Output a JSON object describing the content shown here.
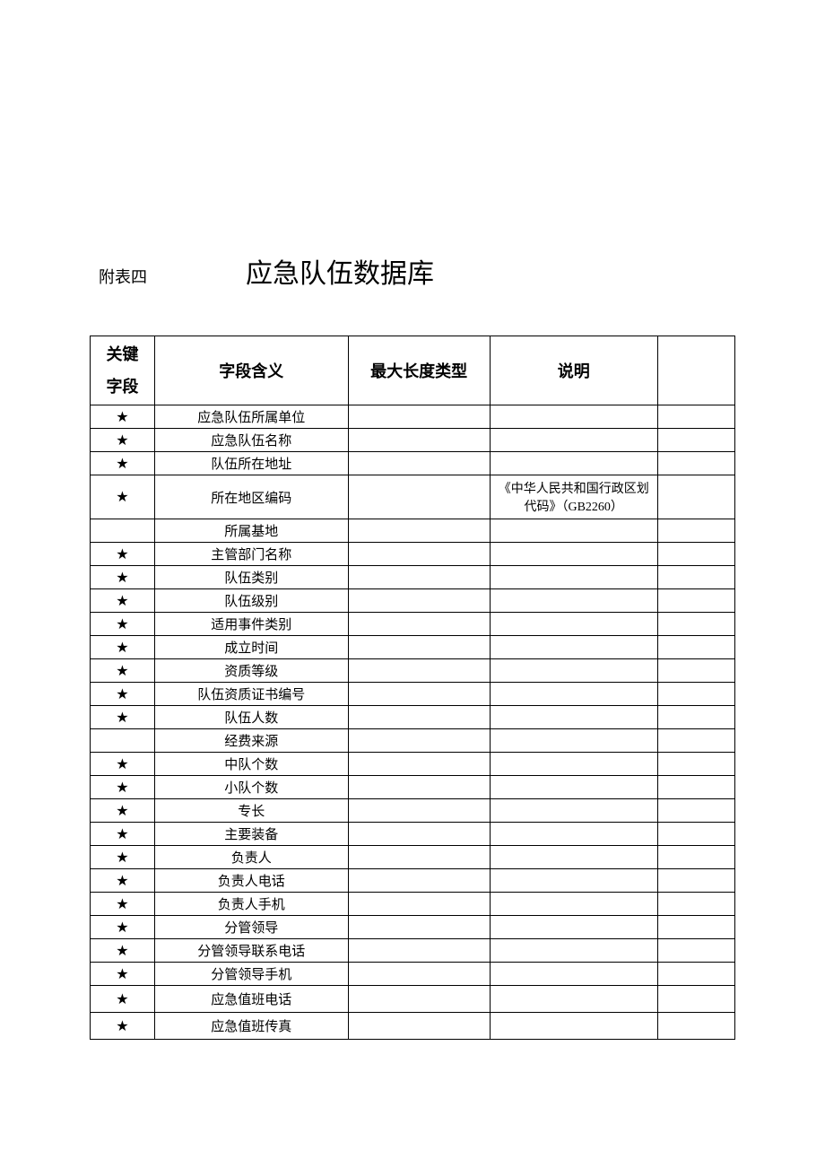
{
  "document": {
    "attachment_label": "附表四",
    "title": "应急队伍数据库",
    "star_char": "★",
    "table": {
      "columns": [
        "关键字段",
        "字段含义",
        "最大长度类型",
        "说明",
        ""
      ],
      "col_key_l1": "关键",
      "col_key_l2": "字段",
      "col_meaning": "字段含义",
      "col_maxlen": "最大长度类型",
      "col_desc": "说明",
      "rows": [
        {
          "key": true,
          "meaning": "应急队伍所属单位",
          "maxlen": "",
          "desc": "",
          "tall": false
        },
        {
          "key": true,
          "meaning": "应急队伍名称",
          "maxlen": "",
          "desc": "",
          "tall": false
        },
        {
          "key": true,
          "meaning": "队伍所在地址",
          "maxlen": "",
          "desc": "",
          "tall": false
        },
        {
          "key": true,
          "meaning": "所在地区编码",
          "maxlen": "",
          "desc": "《中华人民共和国行政区划代码》（GB2260）",
          "tall": false,
          "multiline": true
        },
        {
          "key": false,
          "meaning": "所属基地",
          "maxlen": "",
          "desc": "",
          "tall": false
        },
        {
          "key": true,
          "meaning": "主管部门名称",
          "maxlen": "",
          "desc": "",
          "tall": false
        },
        {
          "key": true,
          "meaning": "队伍类别",
          "maxlen": "",
          "desc": "",
          "tall": false
        },
        {
          "key": true,
          "meaning": "队伍级别",
          "maxlen": "",
          "desc": "",
          "tall": false
        },
        {
          "key": true,
          "meaning": "适用事件类别",
          "maxlen": "",
          "desc": "",
          "tall": false
        },
        {
          "key": true,
          "meaning": "成立时间",
          "maxlen": "",
          "desc": "",
          "tall": false
        },
        {
          "key": true,
          "meaning": "资质等级",
          "maxlen": "",
          "desc": "",
          "tall": false
        },
        {
          "key": true,
          "meaning": "队伍资质证书编号",
          "maxlen": "",
          "desc": "",
          "tall": false
        },
        {
          "key": true,
          "meaning": "队伍人数",
          "maxlen": "",
          "desc": "",
          "tall": false
        },
        {
          "key": false,
          "meaning": "经费来源",
          "maxlen": "",
          "desc": "",
          "tall": false
        },
        {
          "key": true,
          "meaning": "中队个数",
          "maxlen": "",
          "desc": "",
          "tall": false
        },
        {
          "key": true,
          "meaning": "小队个数",
          "maxlen": "",
          "desc": "",
          "tall": false
        },
        {
          "key": true,
          "meaning": "专长",
          "maxlen": "",
          "desc": "",
          "tall": false
        },
        {
          "key": true,
          "meaning": "主要装备",
          "maxlen": "",
          "desc": "",
          "tall": false
        },
        {
          "key": true,
          "meaning": "负责人",
          "maxlen": "",
          "desc": "",
          "tall": false
        },
        {
          "key": true,
          "meaning": "负责人电话",
          "maxlen": "",
          "desc": "",
          "tall": false
        },
        {
          "key": true,
          "meaning": "负责人手机",
          "maxlen": "",
          "desc": "",
          "tall": false
        },
        {
          "key": true,
          "meaning": "分管领导",
          "maxlen": "",
          "desc": "",
          "tall": false
        },
        {
          "key": true,
          "meaning": "分管领导联系电话",
          "maxlen": "",
          "desc": "",
          "tall": false
        },
        {
          "key": true,
          "meaning": "分管领导手机",
          "maxlen": "",
          "desc": "",
          "tall": false
        },
        {
          "key": true,
          "meaning": "应急值班电话",
          "maxlen": "",
          "desc": "",
          "tall": true
        },
        {
          "key": true,
          "meaning": "应急值班传真",
          "maxlen": "",
          "desc": "",
          "tall": true
        }
      ]
    }
  }
}
